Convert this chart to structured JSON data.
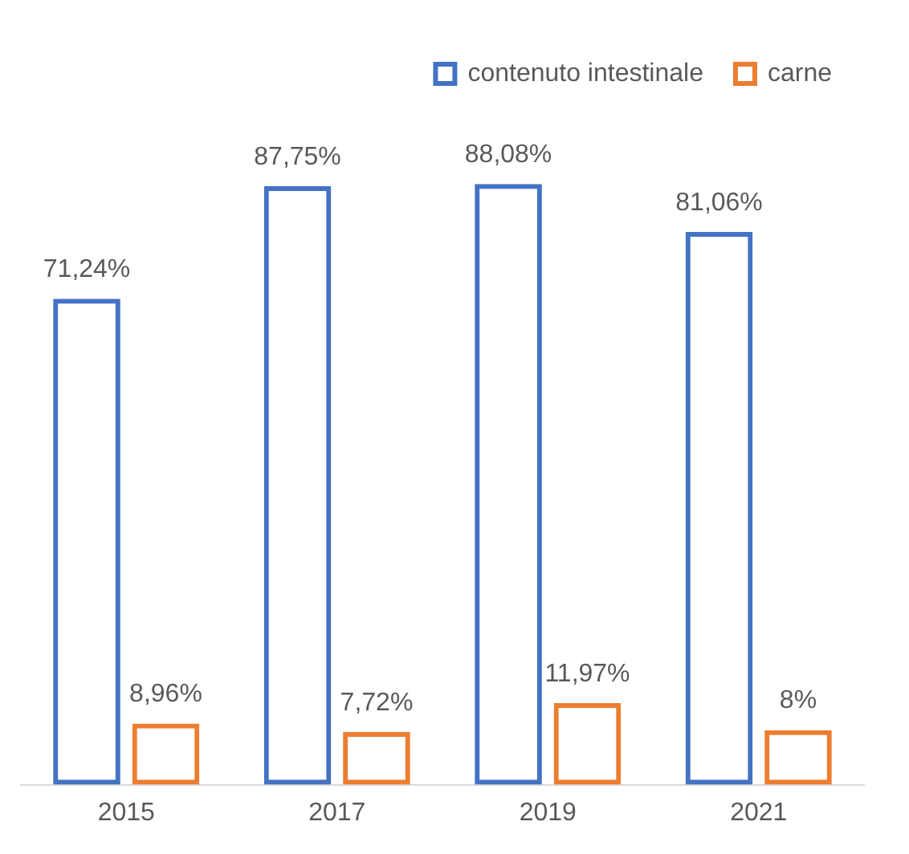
{
  "chart_data": {
    "type": "bar",
    "categories": [
      "2015",
      "2017",
      "2019",
      "2021"
    ],
    "series": [
      {
        "name": "contenuto intestinale",
        "color": "#4472c4",
        "values": [
          71.24,
          87.75,
          88.08,
          81.06
        ],
        "value_labels": [
          "71,24%",
          "87,75%",
          "88,08%",
          "81,06%"
        ]
      },
      {
        "name": "carne",
        "color": "#ed7d31",
        "values": [
          8.96,
          7.72,
          11.97,
          8
        ],
        "value_labels": [
          "8,96%",
          "7,72%",
          "11,97%",
          "8%"
        ]
      }
    ],
    "legend": "top right",
    "grid": false
  }
}
